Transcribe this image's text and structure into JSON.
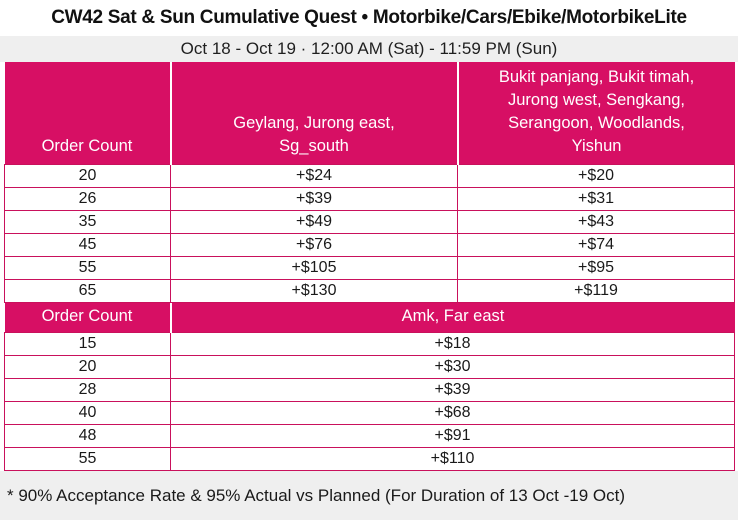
{
  "header": {
    "title": "CW42 Sat & Sun Cumulative Quest • Motorbike/Cars/Ebike/MotorbikeLite",
    "subtitle": "Oct 18 - Oct 19 · 12:00 AM (Sat) - 11:59 PM (Sun)"
  },
  "colors": {
    "brand_magenta": "#D70F64",
    "grid_border": "#C9115C",
    "band_gray": "#EFEFEF",
    "text_dark": "#1A1A1A"
  },
  "table1": {
    "columns": [
      "Order Count",
      "Geylang, Jurong east,\nSg_south",
      "Bukit panjang, Bukit timah,\nJurong west, Sengkang,\nSerangoon, Woodlands,\nYishun"
    ],
    "rows": [
      [
        "20",
        "+$24",
        "+$20"
      ],
      [
        "26",
        "+$39",
        "+$31"
      ],
      [
        "35",
        "+$49",
        "+$43"
      ],
      [
        "45",
        "+$76",
        "+$74"
      ],
      [
        "55",
        "+$105",
        "+$95"
      ],
      [
        "65",
        "+$130",
        "+$119"
      ]
    ]
  },
  "table2": {
    "columns": [
      "Order Count",
      "Amk, Far east"
    ],
    "rows": [
      [
        "15",
        "+$18"
      ],
      [
        "20",
        "+$30"
      ],
      [
        "28",
        "+$39"
      ],
      [
        "40",
        "+$68"
      ],
      [
        "48",
        "+$91"
      ],
      [
        "55",
        "+$110"
      ]
    ]
  },
  "footnote": "* 90% Acceptance Rate & 95% Actual vs Planned (For Duration of 13 Oct -19 Oct)"
}
